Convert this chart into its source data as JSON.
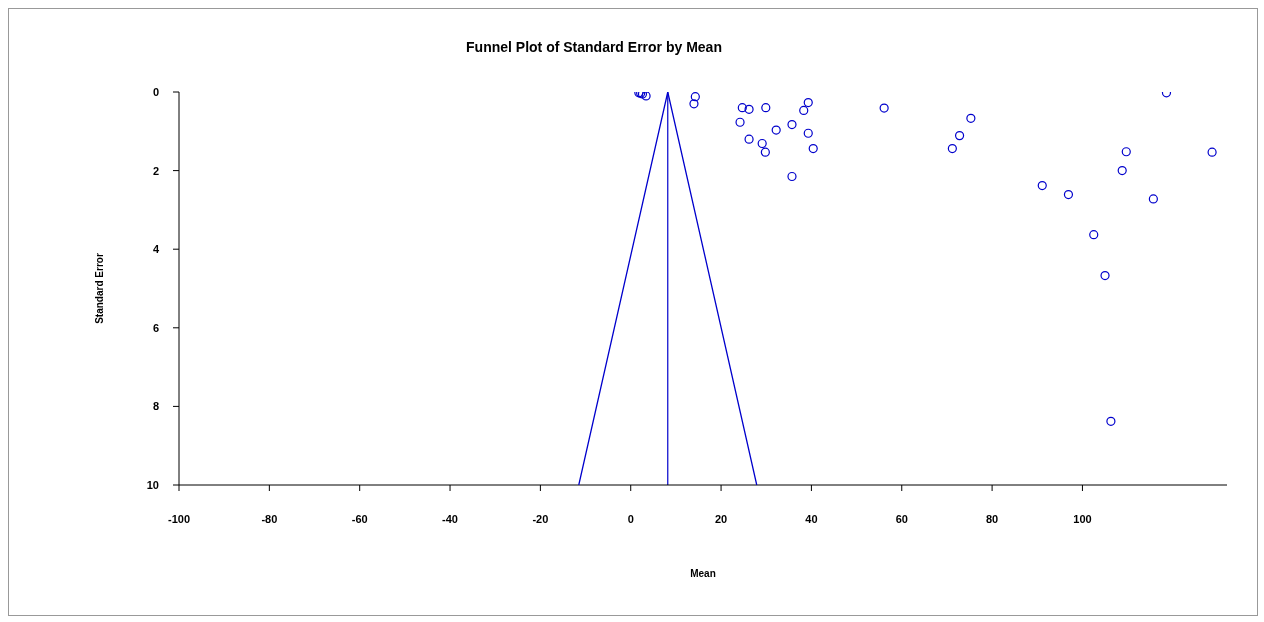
{
  "chart_data": {
    "type": "scatter",
    "title": "Funnel Plot of Standard Error by Mean",
    "xlabel": "Mean",
    "ylabel": "Standard Error",
    "xlim": [
      -100,
      132
    ],
    "xticks": [
      -100,
      -80,
      -60,
      -40,
      -20,
      0,
      20,
      40,
      60,
      80,
      100
    ],
    "ylim": [
      10,
      0
    ],
    "yticks": [
      0,
      2,
      4,
      6,
      8,
      10
    ],
    "grid": false,
    "legend": false,
    "marker": "circle",
    "series": [
      {
        "color": "#0000cc",
        "x": [
          1.8,
          2.2,
          2.6,
          3.4,
          14.3,
          14.0,
          24.7,
          26.2,
          29.9,
          39.3,
          38.3,
          56.1,
          75.3,
          24.2,
          35.7,
          32.2,
          39.3,
          72.8,
          26.2,
          29.1,
          29.8,
          40.4,
          71.2,
          35.7,
          91.1,
          96.9,
          118.6,
          109.7,
          128.7,
          108.8,
          115.7,
          102.5,
          105.0,
          106.3
        ],
        "values": [
          0.02,
          0.03,
          0.05,
          0.1,
          0.12,
          0.3,
          0.4,
          0.44,
          0.4,
          0.27,
          0.47,
          0.41,
          0.67,
          0.77,
          0.83,
          0.97,
          1.05,
          1.11,
          1.2,
          1.31,
          1.53,
          1.44,
          1.44,
          2.15,
          2.38,
          2.61,
          0.02,
          1.52,
          1.53,
          2.0,
          2.72,
          3.63,
          4.67,
          8.38
        ]
      },
      {
        "type": "line",
        "color": "#0000cc",
        "marker": "none",
        "x": [
          -11.5,
          8.2,
          27.9
        ],
        "values": [
          10,
          0,
          10
        ]
      }
    ],
    "ref_lines": [
      {
        "axis": "x",
        "value": 8.2,
        "color": "#0000cc"
      }
    ]
  }
}
